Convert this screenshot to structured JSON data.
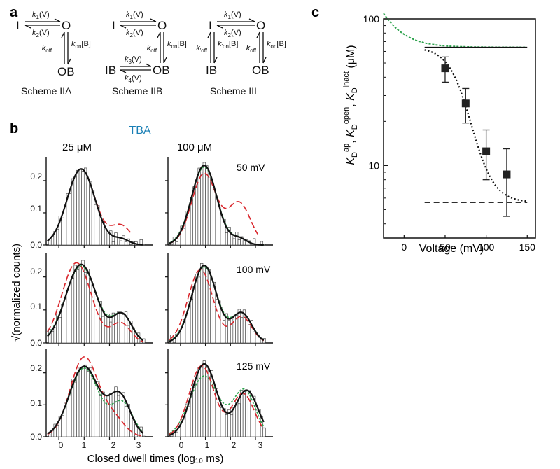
{
  "panels": {
    "a": "a",
    "b": "b",
    "c": "c"
  },
  "schemes": {
    "iia": {
      "title": "Scheme IIA",
      "states": {
        "i": "I",
        "o": "O",
        "ob": "OB"
      },
      "rates": {
        "k1": "k1(V)",
        "k2": "k2(V)",
        "koff": "koff",
        "kon": "kon[B]"
      }
    },
    "iib": {
      "title": "Scheme IIB",
      "states": {
        "i": "I",
        "o": "O",
        "ib": "IB",
        "ob": "OB"
      },
      "rates": {
        "k1": "k1(V)",
        "k2": "k2(V)",
        "k3": "k3(V)",
        "k4": "k4(V)",
        "koff": "koff",
        "kon": "kon[B]"
      }
    },
    "iii": {
      "title": "Scheme III",
      "states": {
        "i": "I",
        "o": "O",
        "ib": "IB",
        "ob": "OB"
      },
      "rates": {
        "k1": "k1(V)",
        "k2": "k2(V)",
        "koff_i": "k'off",
        "kon_i": "k'on[B]",
        "koff": "koff",
        "kon": "kon[B]"
      }
    }
  },
  "panel_b": {
    "title": "TBA",
    "title_color": "#1a7fb5",
    "col_labels": [
      "25 μM",
      "100 μM"
    ],
    "row_labels": [
      "50 mV",
      "100 mV",
      "125 mV"
    ],
    "ylabel": "√(normalized counts)",
    "xlabel": "Closed dwell times (log₁₀ ms)",
    "yticks": [
      "0.0",
      "0.1",
      "0.2"
    ],
    "xticks": [
      "0",
      "1",
      "2",
      "3"
    ]
  },
  "chart_data": [
    {
      "type": "bar",
      "id": "histograms",
      "x_range": [
        -0.5,
        3.7
      ],
      "y_range": [
        0,
        0.265
      ],
      "line_colors": {
        "fit": "#111111",
        "scheme_ii": "#d9262c",
        "scheme_iii": "#2ca24c"
      },
      "panels": [
        {
          "row": 0,
          "col": 0,
          "component_peaks": [
            {
              "mu": 0.88,
              "sigma": 0.55,
              "a": 0.236
            },
            {
              "mu": 2.45,
              "sigma": 0.32,
              "a": 0.018
            }
          ],
          "red": [
            {
              "mu": 0.88,
              "sigma": 0.55,
              "a": 0.236
            },
            {
              "mu": 2.45,
              "sigma": 0.4,
              "a": 0.06
            }
          ],
          "red_end": 2.9,
          "green": false
        },
        {
          "row": 0,
          "col": 1,
          "component_peaks": [
            {
              "mu": 0.95,
              "sigma": 0.5,
              "a": 0.247
            },
            {
              "mu": 2.35,
              "sigma": 0.3,
              "a": 0.02
            }
          ],
          "red": [
            {
              "mu": 0.95,
              "sigma": 0.5,
              "a": 0.222
            },
            {
              "mu": 2.35,
              "sigma": 0.45,
              "a": 0.13
            }
          ],
          "red_end": 3.1,
          "green": true
        },
        {
          "row": 1,
          "col": 0,
          "component_peaks": [
            {
              "mu": 0.88,
              "sigma": 0.6,
              "a": 0.238
            },
            {
              "mu": 2.5,
              "sigma": 0.38,
              "a": 0.085
            }
          ],
          "red": [
            {
              "mu": 0.7,
              "sigma": 0.58,
              "a": 0.243
            },
            {
              "mu": 2.45,
              "sigma": 0.38,
              "a": 0.06
            }
          ],
          "green": true
        },
        {
          "row": 1,
          "col": 1,
          "component_peaks": [
            {
              "mu": 0.95,
              "sigma": 0.5,
              "a": 0.235
            },
            {
              "mu": 2.45,
              "sigma": 0.4,
              "a": 0.09
            }
          ],
          "red": [
            {
              "mu": 0.8,
              "sigma": 0.5,
              "a": 0.222
            },
            {
              "mu": 2.45,
              "sigma": 0.4,
              "a": 0.08
            }
          ],
          "green": true
        },
        {
          "row": 2,
          "col": 0,
          "component_peaks": [
            {
              "mu": 1.0,
              "sigma": 0.58,
              "a": 0.22
            },
            {
              "mu": 2.4,
              "sigma": 0.42,
              "a": 0.128
            }
          ],
          "red": [
            {
              "mu": 1.0,
              "sigma": 0.55,
              "a": 0.248
            },
            {
              "mu": 2.15,
              "sigma": 0.45,
              "a": 0.055
            }
          ],
          "green": true,
          "green_peaks": [
            {
              "mu": 1.0,
              "sigma": 0.58,
              "a": 0.215
            },
            {
              "mu": 2.5,
              "sigma": 0.42,
              "a": 0.105
            }
          ]
        },
        {
          "row": 2,
          "col": 1,
          "component_peaks": [
            {
              "mu": 0.95,
              "sigma": 0.5,
              "a": 0.228
            },
            {
              "mu": 2.65,
              "sigma": 0.45,
              "a": 0.145
            }
          ],
          "red": [
            {
              "mu": 0.85,
              "sigma": 0.5,
              "a": 0.222
            },
            {
              "mu": 2.5,
              "sigma": 0.45,
              "a": 0.135
            }
          ],
          "green": true,
          "green_peaks": [
            {
              "mu": 0.95,
              "sigma": 0.58,
              "a": 0.19
            },
            {
              "mu": 2.55,
              "sigma": 0.45,
              "a": 0.145
            }
          ]
        }
      ]
    },
    {
      "type": "scatter",
      "id": "kd-vs-voltage",
      "title": "",
      "xlabel": "Voltage (mV)",
      "ylabel": "K_D^ap, K_D^open, K_D^inact (μM)",
      "xlim": [
        -25,
        160
      ],
      "ylim_log": [
        3.2,
        100
      ],
      "yscale": "log",
      "xticks": [
        0,
        50,
        100,
        150
      ],
      "yticks": [
        10,
        100
      ],
      "points": {
        "x": [
          50,
          75,
          100,
          125
        ],
        "y": [
          46,
          26.5,
          12.5,
          8.7
        ],
        "err_low": [
          37,
          19.5,
          8,
          4.5
        ],
        "err_high": [
          55,
          33.5,
          17.5,
          13
        ]
      },
      "solid_line": {
        "x_start": 25,
        "x_end": 150,
        "y": 64
      },
      "dashed_line": {
        "x_start": 25,
        "x_end": 150,
        "y": 5.6
      },
      "dotted_fit": {
        "kd_high": 64,
        "kd_low": 5.6,
        "v_half": 82,
        "slope": 14
      },
      "green_dashed": {
        "base": 64,
        "amp": 45,
        "v0": -25,
        "tau": 22
      },
      "colors": {
        "points": "#222222",
        "green": "#2ca24c"
      }
    }
  ]
}
